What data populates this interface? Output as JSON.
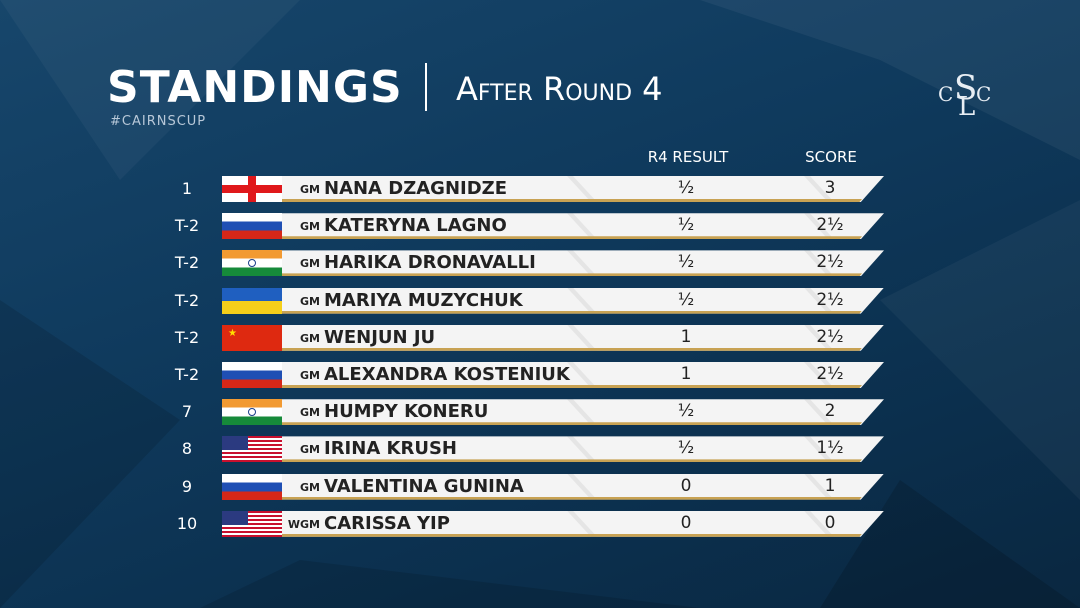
{
  "header": {
    "title": "STANDINGS",
    "subtitle": "After Round 4",
    "hashtag": "#CAIRNSCUP",
    "logo": [
      "C",
      "S",
      "L",
      "C"
    ]
  },
  "table": {
    "columns": [
      "R4 RESULT",
      "SCORE"
    ],
    "rows": [
      {
        "rank": "1",
        "title": "GM",
        "name": "NANA DZAGNIDZE",
        "result": "½",
        "score": "3"
      },
      {
        "rank": "T-2",
        "title": "GM",
        "name": "KATERYNA LAGNO",
        "result": "½",
        "score": "2½"
      },
      {
        "rank": "T-2",
        "title": "GM",
        "name": "HARIKA DRONAVALLI",
        "result": "½",
        "score": "2½"
      },
      {
        "rank": "T-2",
        "title": "GM",
        "name": "MARIYA MUZYCHUK",
        "result": "½",
        "score": "2½"
      },
      {
        "rank": "T-2",
        "title": "GM",
        "name": "WENJUN JU",
        "result": "1",
        "score": "2½"
      },
      {
        "rank": "T-2",
        "title": "GM",
        "name": "ALEXANDRA KOSTENIUK",
        "result": "1",
        "score": "2½"
      },
      {
        "rank": "7",
        "title": "GM",
        "name": "HUMPY KONERU",
        "result": "½",
        "score": "2"
      },
      {
        "rank": "8",
        "title": "GM",
        "name": "IRINA KRUSH",
        "result": "½",
        "score": "1½"
      },
      {
        "rank": "9",
        "title": "GM",
        "name": "VALENTINA GUNINA",
        "result": "0",
        "score": "1"
      },
      {
        "rank": "10",
        "title": "WGM",
        "name": "CARISSA YIP",
        "result": "0",
        "score": "0"
      }
    ]
  }
}
